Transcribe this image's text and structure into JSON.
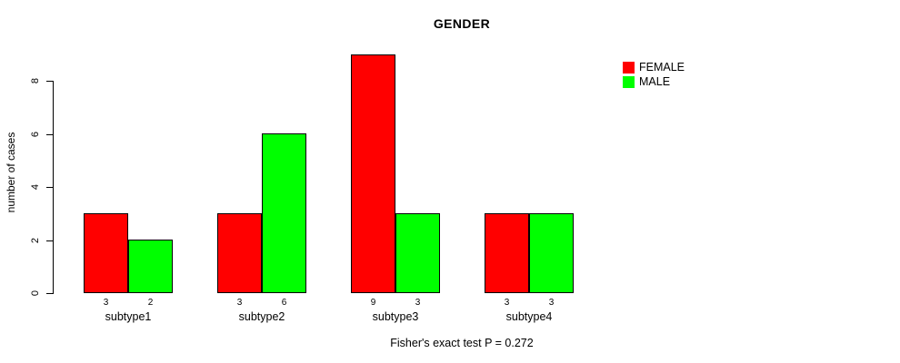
{
  "chart_data": {
    "type": "bar",
    "grouped": true,
    "title": "GENDER",
    "xlabel": "",
    "ylabel": "number of cases",
    "categories": [
      "subtype1",
      "subtype2",
      "subtype3",
      "subtype4"
    ],
    "series": [
      {
        "name": "FEMALE",
        "color": "#ff0000",
        "values": [
          3,
          3,
          9,
          3
        ]
      },
      {
        "name": "MALE",
        "color": "#00ff00",
        "values": [
          2,
          6,
          3,
          3
        ]
      }
    ],
    "bar_value_labels_shown": true,
    "yticks": [
      0,
      2,
      4,
      6,
      8
    ],
    "ylim": [
      0,
      9
    ],
    "grid": "off",
    "legend_position": "topright",
    "annotation": "Fisher's exact test P = 0.272"
  }
}
